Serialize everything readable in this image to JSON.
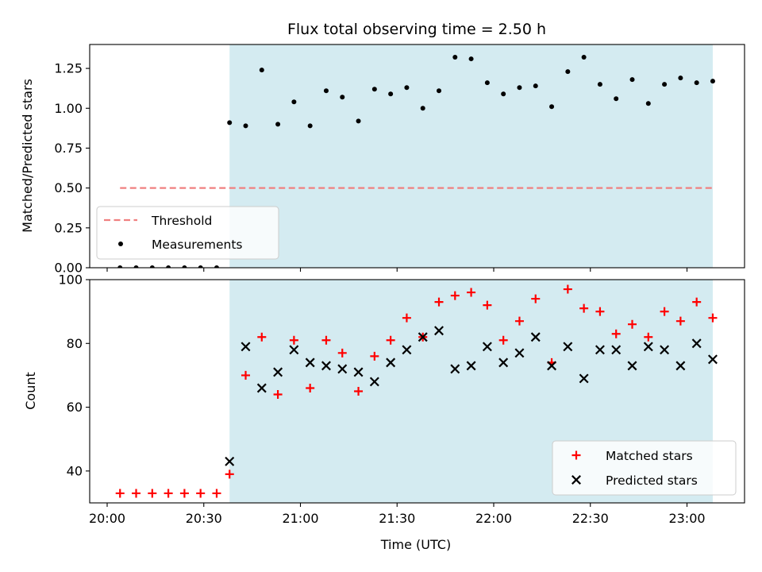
{
  "chart_data": [
    {
      "type": "scatter",
      "panel": "top",
      "title": "Flux total observing time = 2.50 h",
      "ylabel": "Matched/Predicted stars",
      "xlabel": "",
      "xlim": [
        "20:00-5min",
        "23:18"
      ],
      "x_ticks": [
        "20:00",
        "20:30",
        "21:00",
        "21:30",
        "22:00",
        "22:30",
        "23:00"
      ],
      "ylim": [
        0,
        1.4
      ],
      "y_ticks": [
        "0.00",
        "0.25",
        "0.50",
        "0.75",
        "1.00",
        "1.25"
      ],
      "shaded_region": {
        "x_start": "20:38",
        "x_end": "23:08",
        "color": "#d4ebf1"
      },
      "legend_position": "lower-left",
      "threshold": {
        "name": "Threshold",
        "value": 0.5,
        "x_start": "20:04",
        "x_end": "23:08",
        "color": "#f08080",
        "style": "dashed"
      },
      "series": [
        {
          "name": "Measurements",
          "color": "#000000",
          "marker": "dot",
          "points": [
            [
              "20:04",
              0.0
            ],
            [
              "20:09",
              0.0
            ],
            [
              "20:14",
              0.0
            ],
            [
              "20:19",
              0.0
            ],
            [
              "20:24",
              0.0
            ],
            [
              "20:29",
              0.0
            ],
            [
              "20:34",
              0.0
            ],
            [
              "20:38",
              0.91
            ],
            [
              "20:43",
              0.89
            ],
            [
              "20:48",
              1.24
            ],
            [
              "20:53",
              0.9
            ],
            [
              "20:58",
              1.04
            ],
            [
              "21:03",
              0.89
            ],
            [
              "21:08",
              1.11
            ],
            [
              "21:13",
              1.07
            ],
            [
              "21:18",
              0.92
            ],
            [
              "21:23",
              1.12
            ],
            [
              "21:28",
              1.09
            ],
            [
              "21:33",
              1.13
            ],
            [
              "21:38",
              1.0
            ],
            [
              "21:43",
              1.11
            ],
            [
              "21:48",
              1.32
            ],
            [
              "21:53",
              1.31
            ],
            [
              "21:58",
              1.16
            ],
            [
              "22:03",
              1.09
            ],
            [
              "22:08",
              1.13
            ],
            [
              "22:13",
              1.14
            ],
            [
              "22:18",
              1.01
            ],
            [
              "22:23",
              1.23
            ],
            [
              "22:28",
              1.32
            ],
            [
              "22:33",
              1.15
            ],
            [
              "22:38",
              1.06
            ],
            [
              "22:43",
              1.18
            ],
            [
              "22:48",
              1.03
            ],
            [
              "22:53",
              1.15
            ],
            [
              "22:58",
              1.19
            ],
            [
              "23:03",
              1.16
            ],
            [
              "23:08",
              1.17
            ]
          ]
        }
      ]
    },
    {
      "type": "scatter",
      "panel": "bottom",
      "title": "",
      "xlabel": "Time (UTC)",
      "ylabel": "Count",
      "x_ticks": [
        "20:00",
        "20:30",
        "21:00",
        "21:30",
        "22:00",
        "22:30",
        "23:00"
      ],
      "ylim": [
        30,
        100
      ],
      "y_ticks": [
        "40",
        "60",
        "80",
        "100"
      ],
      "shaded_region": {
        "x_start": "20:38",
        "x_end": "23:08",
        "color": "#d4ebf1"
      },
      "legend_position": "lower-right",
      "series": [
        {
          "name": "Matched stars",
          "color": "#ff0000",
          "marker": "plus",
          "points": [
            [
              "20:04",
              33
            ],
            [
              "20:09",
              33
            ],
            [
              "20:14",
              33
            ],
            [
              "20:19",
              33
            ],
            [
              "20:24",
              33
            ],
            [
              "20:29",
              33
            ],
            [
              "20:34",
              33
            ],
            [
              "20:38",
              39
            ],
            [
              "20:43",
              70
            ],
            [
              "20:48",
              82
            ],
            [
              "20:53",
              64
            ],
            [
              "20:58",
              81
            ],
            [
              "21:03",
              66
            ],
            [
              "21:08",
              81
            ],
            [
              "21:13",
              77
            ],
            [
              "21:18",
              65
            ],
            [
              "21:23",
              76
            ],
            [
              "21:28",
              81
            ],
            [
              "21:33",
              88
            ],
            [
              "21:38",
              82
            ],
            [
              "21:43",
              93
            ],
            [
              "21:48",
              95
            ],
            [
              "21:53",
              96
            ],
            [
              "21:58",
              92
            ],
            [
              "22:03",
              81
            ],
            [
              "22:08",
              87
            ],
            [
              "22:13",
              94
            ],
            [
              "22:18",
              74
            ],
            [
              "22:23",
              97
            ],
            [
              "22:28",
              91
            ],
            [
              "22:33",
              90
            ],
            [
              "22:38",
              83
            ],
            [
              "22:43",
              86
            ],
            [
              "22:48",
              82
            ],
            [
              "22:53",
              90
            ],
            [
              "22:58",
              87
            ],
            [
              "23:03",
              93
            ],
            [
              "23:08",
              88
            ]
          ]
        },
        {
          "name": "Predicted stars",
          "color": "#000000",
          "marker": "x",
          "points": [
            [
              "20:38",
              43
            ],
            [
              "20:43",
              79
            ],
            [
              "20:48",
              66
            ],
            [
              "20:53",
              71
            ],
            [
              "20:58",
              78
            ],
            [
              "21:03",
              74
            ],
            [
              "21:08",
              73
            ],
            [
              "21:13",
              72
            ],
            [
              "21:18",
              71
            ],
            [
              "21:23",
              68
            ],
            [
              "21:28",
              74
            ],
            [
              "21:33",
              78
            ],
            [
              "21:38",
              82
            ],
            [
              "21:43",
              84
            ],
            [
              "21:48",
              72
            ],
            [
              "21:53",
              73
            ],
            [
              "21:58",
              79
            ],
            [
              "22:03",
              74
            ],
            [
              "22:08",
              77
            ],
            [
              "22:13",
              82
            ],
            [
              "22:18",
              73
            ],
            [
              "22:23",
              79
            ],
            [
              "22:28",
              69
            ],
            [
              "22:33",
              78
            ],
            [
              "22:38",
              78
            ],
            [
              "22:43",
              73
            ],
            [
              "22:48",
              79
            ],
            [
              "22:53",
              78
            ],
            [
              "22:58",
              73
            ],
            [
              "23:03",
              80
            ],
            [
              "23:08",
              75
            ]
          ]
        }
      ]
    }
  ]
}
